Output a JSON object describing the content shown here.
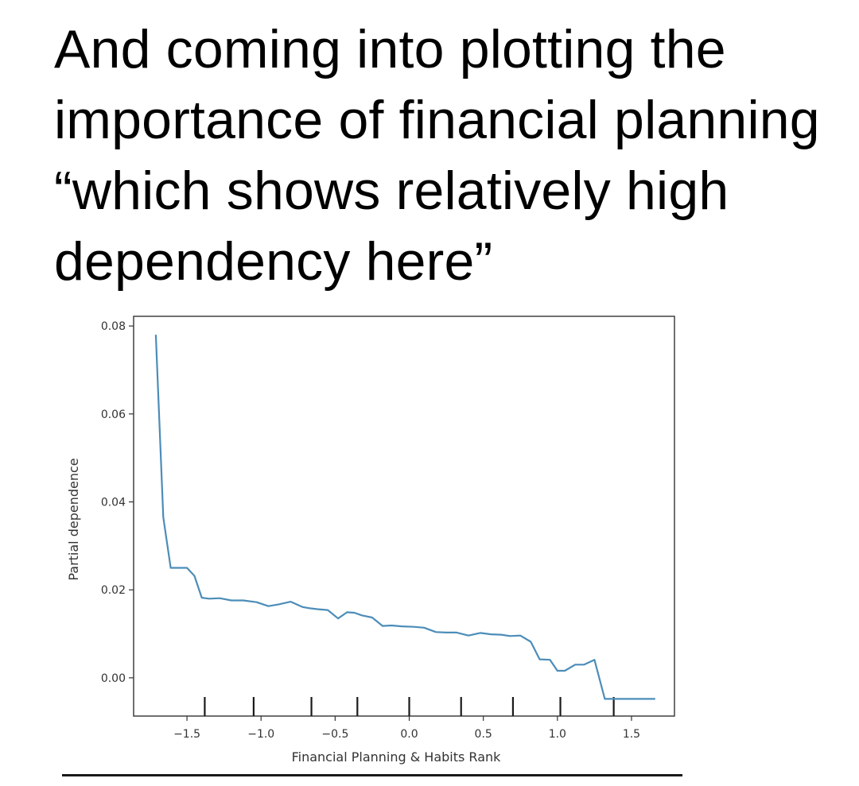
{
  "caption": {
    "lines": [
      "And coming into plotting the",
      "importance of financial planning",
      "“which shows relatively high",
      "dependency here”"
    ]
  },
  "chart_data": {
    "type": "line",
    "title": "",
    "xlabel": "Financial Planning & Habits Rank",
    "ylabel": "Partial dependence",
    "xlim": [
      -1.86,
      1.79
    ],
    "ylim": [
      -0.0087,
      0.0822
    ],
    "x_ticks": [
      -1.5,
      -1.0,
      -0.5,
      0.0,
      0.5,
      1.0,
      1.5
    ],
    "x_tick_labels": [
      "−1.5",
      "−1.0",
      "−0.5",
      "0.0",
      "0.5",
      "1.0",
      "1.5"
    ],
    "y_ticks": [
      0.0,
      0.02,
      0.04,
      0.06,
      0.08
    ],
    "y_tick_labels": [
      "0.00",
      "0.02",
      "0.04",
      "0.06",
      "0.08"
    ],
    "grid": false,
    "line_color": "#4c8db8",
    "rug_x": [
      -1.38,
      -1.05,
      -0.66,
      -0.35,
      0.0,
      0.35,
      0.7,
      1.02,
      1.38
    ],
    "series": [
      {
        "x": [
          -1.71,
          -1.66,
          -1.61,
          -1.56,
          -1.5,
          -1.45,
          -1.4,
          -1.35,
          -1.28,
          -1.2,
          -1.12,
          -1.03,
          -0.95,
          -0.88,
          -0.8,
          -0.72,
          -0.67,
          -0.62,
          -0.55,
          -0.48,
          -0.42,
          -0.37,
          -0.32,
          -0.25,
          -0.18,
          -0.12,
          -0.05,
          0.03,
          0.1,
          0.18,
          0.25,
          0.32,
          0.4,
          0.48,
          0.55,
          0.62,
          0.68,
          0.75,
          0.82,
          0.88,
          0.95,
          1.0,
          1.05,
          1.12,
          1.18,
          1.25,
          1.32,
          1.38,
          1.43,
          1.48,
          1.53,
          1.59,
          1.66
        ],
        "y": [
          0.078,
          0.0365,
          0.025,
          0.025,
          0.025,
          0.0232,
          0.0182,
          0.018,
          0.0181,
          0.0176,
          0.0176,
          0.0172,
          0.0163,
          0.0167,
          0.0173,
          0.0161,
          0.0158,
          0.0156,
          0.0154,
          0.0135,
          0.0149,
          0.0148,
          0.0142,
          0.0137,
          0.0118,
          0.0119,
          0.0117,
          0.0116,
          0.0114,
          0.0104,
          0.0103,
          0.0103,
          0.0096,
          0.0102,
          0.0099,
          0.0098,
          0.0095,
          0.0096,
          0.0082,
          0.0042,
          0.0041,
          0.0016,
          0.0016,
          0.003,
          0.003,
          0.0041,
          -0.0048,
          -0.0048,
          -0.0048,
          -0.0048,
          -0.0048,
          -0.0048,
          -0.0048
        ]
      }
    ]
  }
}
